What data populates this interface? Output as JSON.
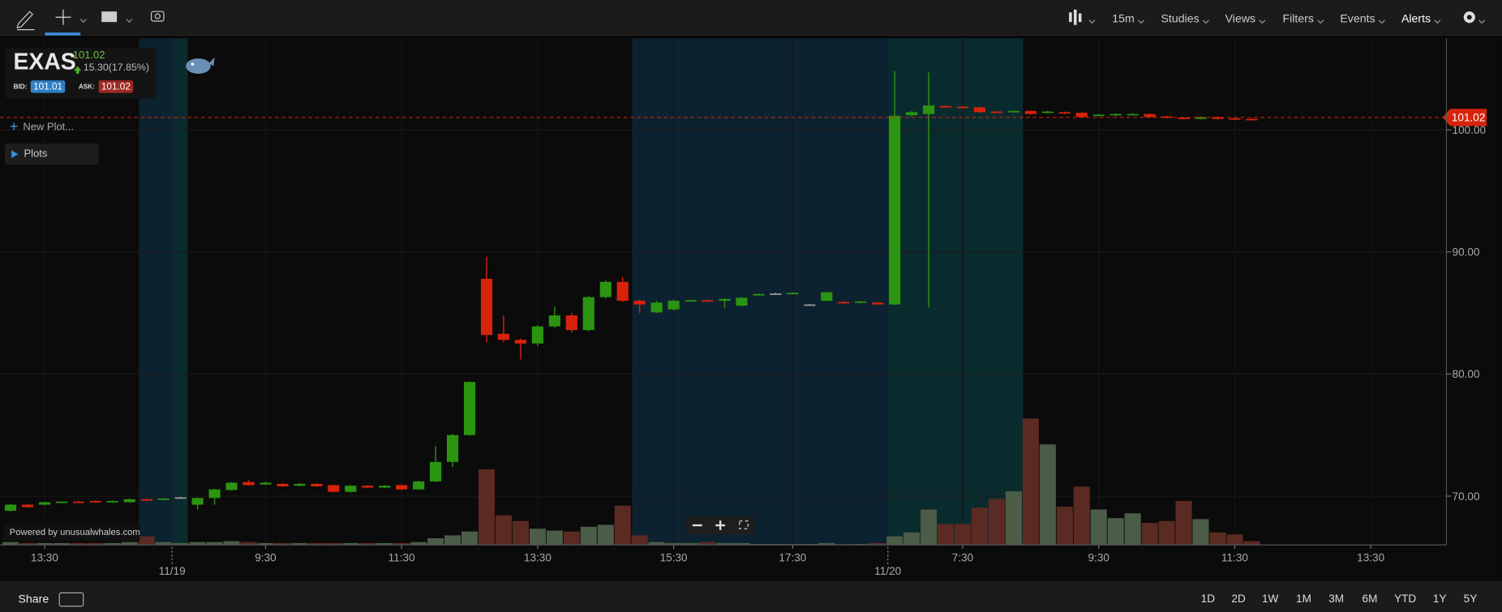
{
  "toolbar": {
    "menus": [
      "15m",
      "Studies",
      "Views",
      "Filters",
      "Events",
      "Alerts"
    ]
  },
  "ticker": {
    "symbol": "EXAS",
    "last": "101.02",
    "change": "15.30(17.85%)",
    "bid_label": "BID:",
    "bid": "101.01",
    "ask_label": "ASK:",
    "ask": "101.02"
  },
  "panel": {
    "new_plot": "New Plot...",
    "plots": "Plots",
    "powered": "Powered by unusualwhales.com"
  },
  "chart_data": {
    "type": "candlestick",
    "open": [
      68.8,
      69.3,
      69.3,
      69.5,
      69.55,
      69.6,
      69.5,
      69.5,
      69.75,
      69.7,
      69.9,
      69.3,
      69.85,
      70.5,
      71.15,
      70.95,
      71.0,
      70.85,
      71.0,
      70.9,
      70.35,
      70.85,
      70.7,
      70.9,
      70.55,
      71.2,
      72.8,
      75.0,
      87.8,
      83.3,
      82.8,
      82.5,
      83.9,
      84.8,
      83.6,
      86.3,
      87.55,
      86.0,
      85.05,
      85.3,
      86.0,
      86.05,
      86.0,
      85.6,
      86.5,
      86.6,
      86.6,
      85.7,
      86.0,
      85.9,
      85.85,
      85.85,
      85.7,
      101.2,
      101.3,
      101.95,
      101.9,
      101.85,
      101.5,
      101.5,
      101.55,
      101.4,
      101.45,
      101.4,
      101.15,
      101.2,
      101.25,
      101.3,
      101.1,
      101.0,
      100.9,
      101.05,
      100.95,
      100.9
    ],
    "high": [
      69.35,
      69.35,
      69.55,
      69.6,
      69.6,
      69.65,
      69.65,
      69.8,
      69.8,
      69.85,
      69.95,
      69.9,
      70.6,
      71.15,
      71.3,
      71.2,
      71.05,
      71.05,
      71.05,
      70.95,
      70.9,
      70.9,
      70.9,
      70.95,
      71.25,
      74.1,
      75.1,
      79.4,
      89.6,
      84.8,
      82.9,
      84.0,
      85.5,
      85.0,
      86.4,
      87.65,
      87.95,
      86.1,
      86.0,
      86.1,
      86.1,
      86.1,
      86.2,
      86.3,
      86.6,
      86.65,
      86.7,
      85.75,
      86.75,
      85.95,
      86.0,
      85.9,
      104.8,
      101.55,
      104.7,
      102.0,
      101.95,
      101.9,
      101.55,
      101.6,
      101.6,
      101.55,
      101.5,
      101.45,
      101.3,
      101.35,
      101.35,
      101.35,
      101.15,
      101.05,
      101.1,
      101.1,
      101.0,
      100.95
    ],
    "low": [
      68.75,
      69.05,
      69.25,
      69.45,
      69.45,
      69.45,
      69.45,
      69.45,
      69.6,
      69.65,
      69.85,
      68.9,
      69.3,
      70.45,
      70.85,
      70.9,
      70.75,
      70.8,
      70.75,
      70.3,
      70.3,
      70.65,
      70.65,
      70.5,
      70.5,
      71.15,
      72.4,
      74.95,
      82.6,
      82.6,
      81.2,
      82.3,
      83.8,
      83.4,
      83.5,
      86.2,
      85.9,
      85.0,
      85.0,
      85.2,
      85.95,
      85.9,
      85.45,
      85.55,
      86.45,
      86.55,
      86.55,
      85.65,
      85.95,
      85.75,
      85.8,
      85.65,
      85.65,
      101.1,
      85.45,
      101.85,
      101.8,
      101.4,
      101.4,
      101.45,
      101.25,
      101.35,
      101.3,
      101.0,
      101.1,
      101.15,
      101.2,
      101.0,
      100.95,
      100.85,
      100.85,
      100.85,
      100.85,
      100.8
    ],
    "close": [
      69.3,
      69.1,
      69.5,
      69.55,
      69.5,
      69.5,
      69.6,
      69.75,
      69.65,
      69.8,
      69.9,
      69.85,
      70.55,
      71.1,
      70.9,
      71.1,
      70.8,
      71.0,
      70.8,
      70.35,
      70.85,
      70.7,
      70.85,
      70.55,
      71.2,
      72.8,
      75.0,
      79.35,
      83.2,
      82.8,
      82.5,
      83.9,
      84.8,
      83.6,
      86.3,
      87.55,
      86.0,
      85.7,
      85.85,
      86.0,
      86.05,
      85.95,
      86.15,
      86.25,
      86.55,
      86.6,
      86.65,
      85.7,
      86.7,
      85.8,
      85.95,
      85.7,
      101.15,
      101.45,
      102.0,
      101.9,
      101.85,
      101.45,
      101.45,
      101.55,
      101.3,
      101.5,
      101.35,
      101.05,
      101.25,
      101.3,
      101.3,
      101.05,
      101.0,
      100.9,
      101.05,
      100.9,
      100.9,
      100.85
    ],
    "volume": [
      3,
      2,
      2,
      2,
      2,
      2,
      2,
      3,
      9,
      3,
      2,
      3,
      3,
      4,
      3,
      2,
      2,
      2,
      2,
      2,
      2,
      2,
      2,
      2,
      3,
      7,
      10,
      14,
      79,
      31,
      25,
      17,
      15,
      14,
      19,
      21,
      41,
      10,
      3,
      2,
      2,
      3,
      2,
      2,
      1,
      1,
      1,
      1,
      2,
      1,
      1,
      2,
      9,
      13,
      37,
      22,
      22,
      39,
      48,
      56,
      132,
      105,
      40,
      61,
      37,
      28,
      33,
      23,
      25,
      46,
      27,
      13,
      11,
      4
    ],
    "up_color": "#2b9410",
    "down_color": "#d8230c",
    "flat_color": "#9a9a9a",
    "volume_up_color": "#4b5c47",
    "volume_down_color": "#5b2a22",
    "ylim": [
      66,
      107.5
    ],
    "yticks": [
      {
        "value": 70,
        "label": "70.00"
      },
      {
        "value": 80,
        "label": "80.00"
      },
      {
        "value": 90,
        "label": "90.00"
      },
      {
        "value": 100,
        "label": "100.00"
      }
    ],
    "vlim": [
      0,
      140
    ],
    "xlim": [
      -0.62,
      84.45
    ],
    "xticks": [
      {
        "value": 2,
        "label": "13:30"
      },
      {
        "value": 15,
        "label": "9:30"
      },
      {
        "value": 23,
        "label": "11:30"
      },
      {
        "value": 31,
        "label": "13:30"
      },
      {
        "value": 39,
        "label": "15:30"
      },
      {
        "value": 46,
        "label": "17:30"
      },
      {
        "value": 56,
        "label": "7:30"
      },
      {
        "value": 64,
        "label": "9:30"
      },
      {
        "value": 72,
        "label": "11:30"
      },
      {
        "value": 80,
        "label": "13:30"
      }
    ],
    "date_ticks": [
      {
        "value": 9.5,
        "label": "11/19"
      },
      {
        "value": 51.6,
        "label": "11/20"
      }
    ],
    "last_price": 101.02,
    "last_color": "#d8230c",
    "grid": true
  },
  "footer": {
    "share": "Share",
    "ranges": [
      "1D",
      "2D",
      "1W",
      "1M",
      "3M",
      "6M",
      "YTD",
      "1Y",
      "5Y"
    ]
  }
}
